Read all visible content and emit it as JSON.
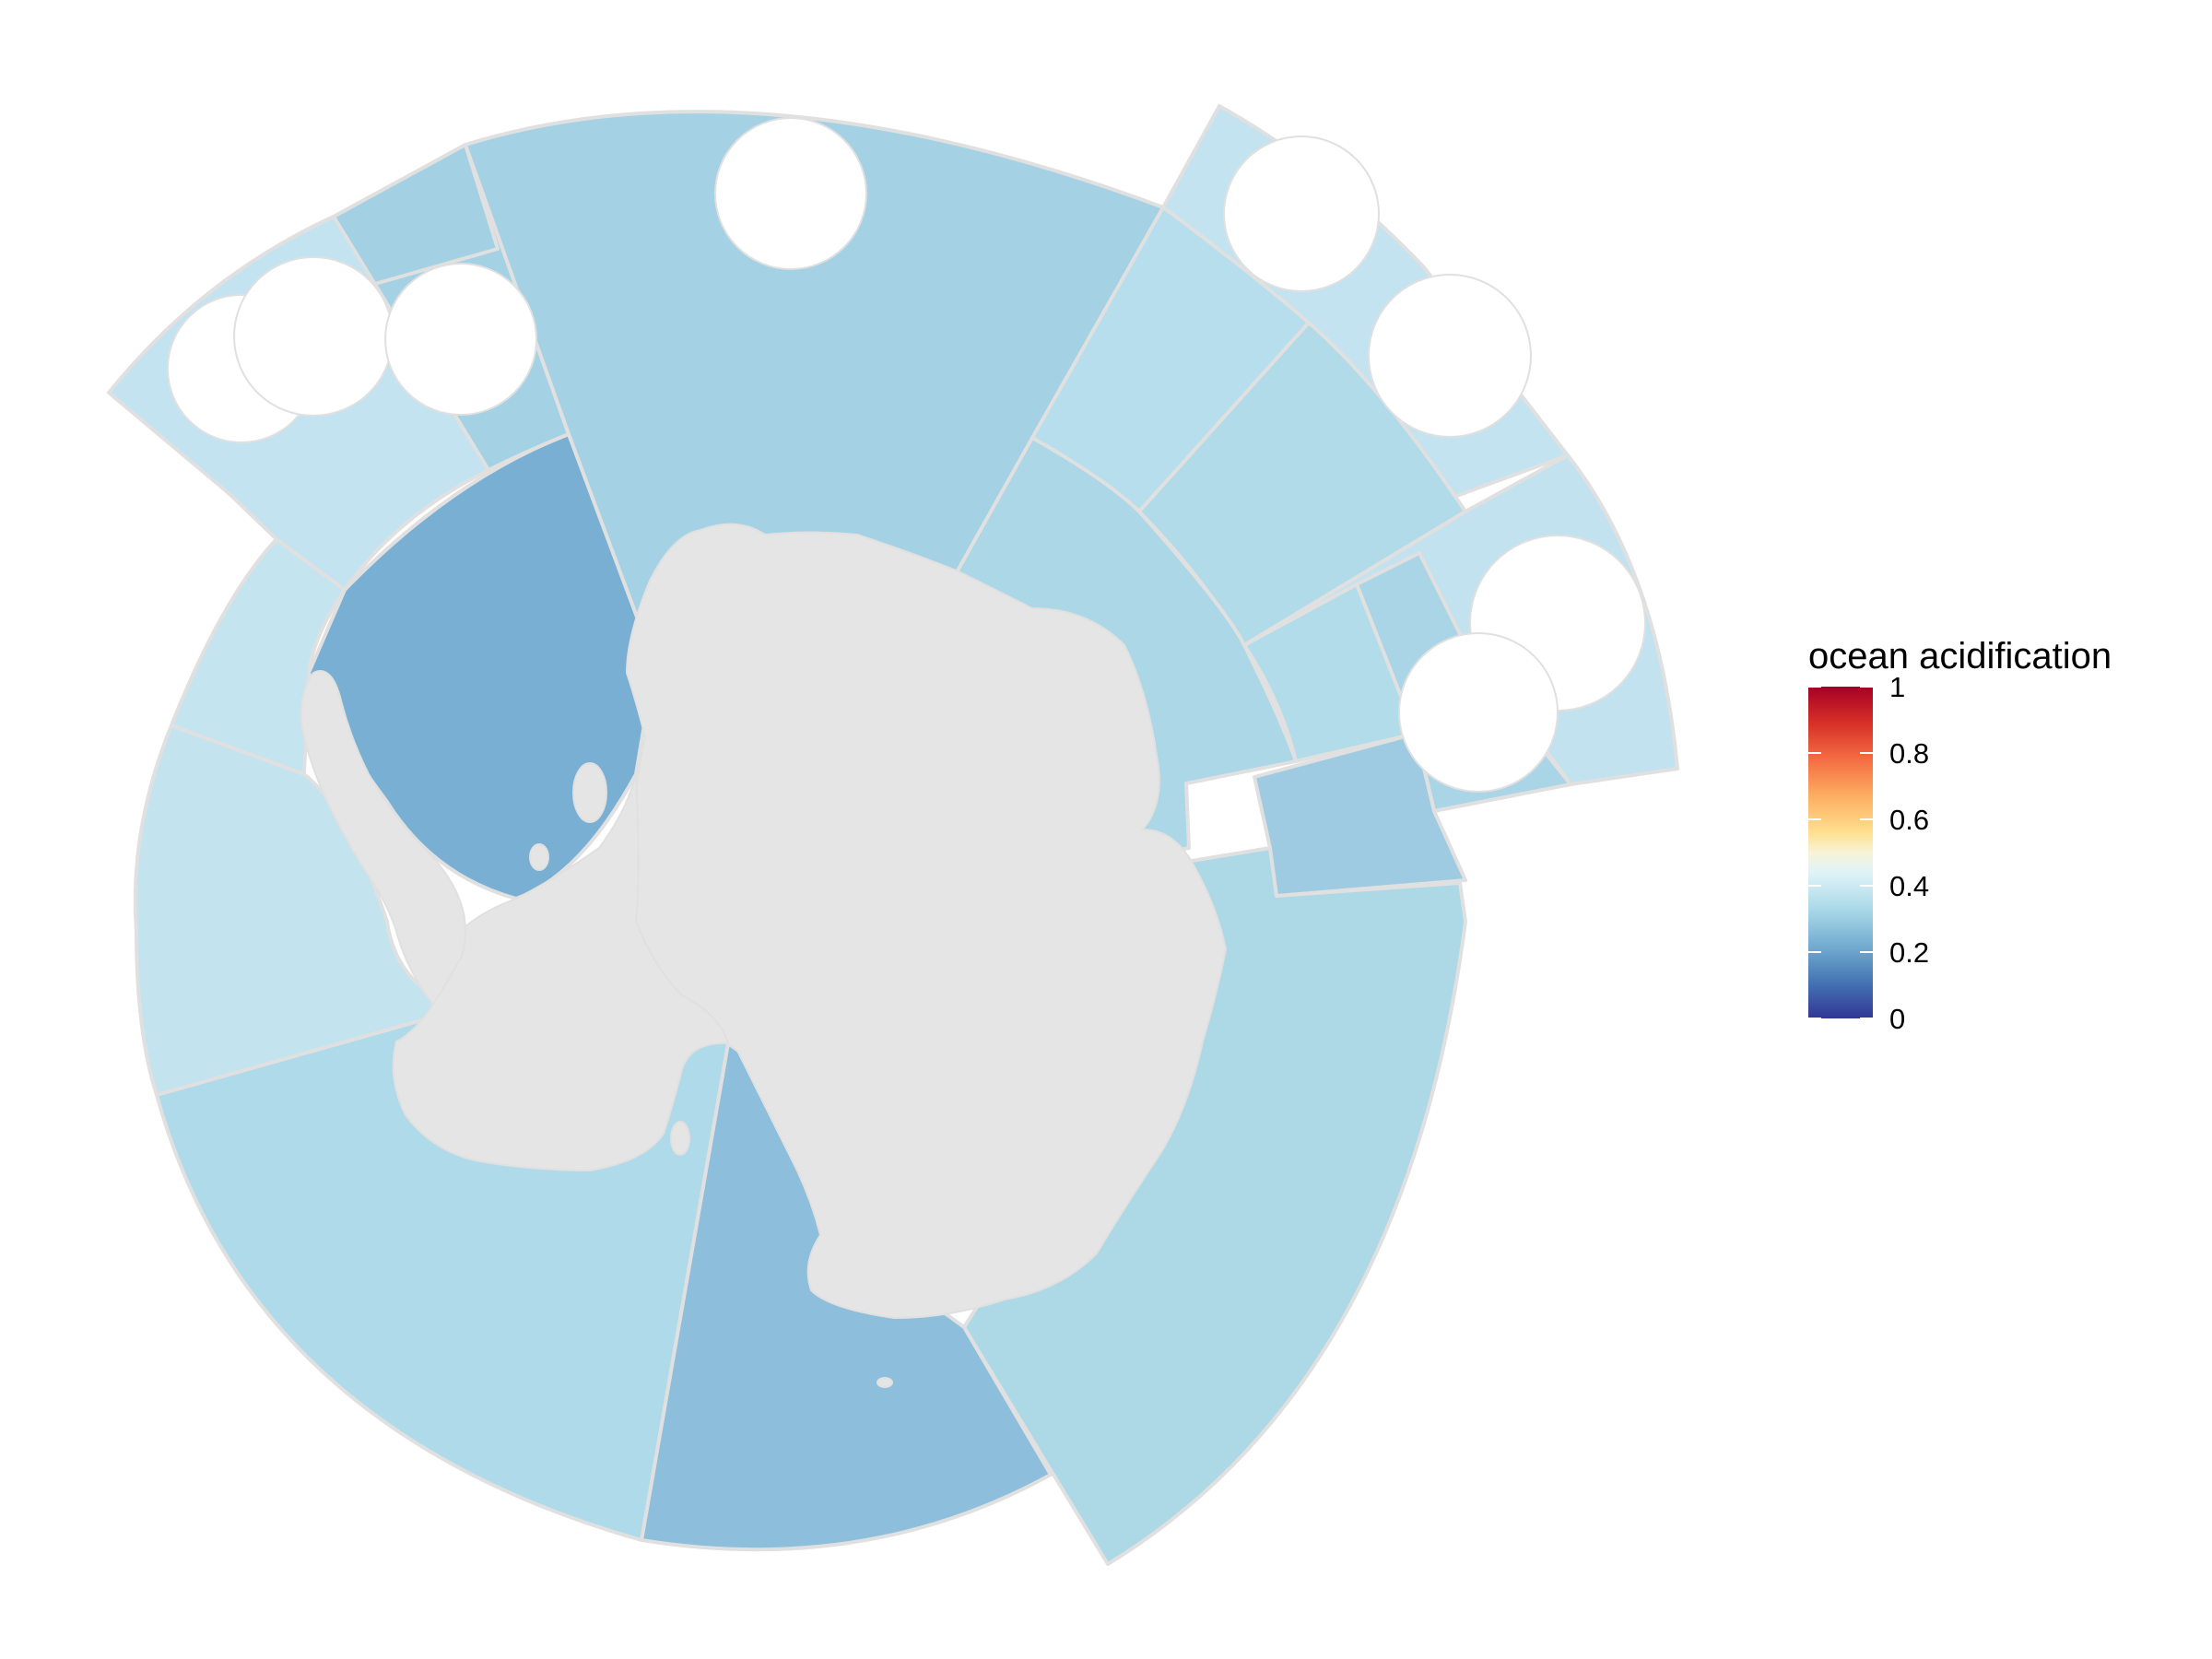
{
  "legend": {
    "title": "ocean acidification",
    "ticks": [
      "1",
      "0.8",
      "0.6",
      "0.4",
      "0.2",
      "0"
    ],
    "tick_values": [
      1,
      0.8,
      0.6,
      0.4,
      0.2,
      0
    ],
    "scale": {
      "min": 0,
      "max": 1,
      "palette": "RdYlBu (reversed)"
    },
    "gradient_stops": [
      "#313695",
      "#4575b4",
      "#74add1",
      "#abd9e9",
      "#e0f3f8",
      "#fee090",
      "#fdae61",
      "#f46d43",
      "#d73027",
      "#a50026"
    ]
  },
  "map": {
    "projection": "south polar stereographic",
    "land_color": "#e5e5e5",
    "border_color": "#e0e0e0",
    "regions": [
      {
        "id": "pacific-sector-south",
        "value": 0.33
      },
      {
        "id": "ross-sea-sector",
        "value": 0.29
      },
      {
        "id": "amundsen-bellingshausen-west",
        "value": 0.33
      },
      {
        "id": "peninsula-west",
        "value": 0.37
      },
      {
        "id": "weddell-sea",
        "value": 0.23
      },
      {
        "id": "scotia-north",
        "value": 0.3
      },
      {
        "id": "south-georgia",
        "value": 0.36
      },
      {
        "id": "atlantic-sector",
        "value": 0.31
      },
      {
        "id": "indian-sector-north",
        "value": 0.36
      },
      {
        "id": "indian-sector-middle",
        "value": 0.33
      },
      {
        "id": "kerguelen",
        "value": 0.35
      },
      {
        "id": "east-antarctica-coast",
        "value": 0.31
      },
      {
        "id": "prydz-bay",
        "value": 0.3
      },
      {
        "id": "kerguelen-plateau-inner",
        "value": 0.31
      },
      {
        "id": "heard-mcdonald",
        "value": 0.31
      },
      {
        "id": "east-indian",
        "value": 0.33
      }
    ]
  }
}
